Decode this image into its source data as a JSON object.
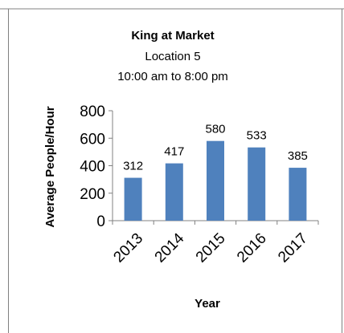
{
  "colors": {
    "bar": "#4f81bd",
    "axis": "#808080",
    "text": "#000000",
    "frame": "#808080"
  },
  "chart_data": {
    "type": "bar",
    "title": "King at Market",
    "subtitle_lines": [
      "Location 5",
      "10:00 am to 8:00 pm"
    ],
    "xlabel": "Year",
    "ylabel": "Average People/Hour",
    "categories": [
      "2013",
      "2014",
      "2015",
      "2016",
      "2017"
    ],
    "values": [
      312,
      417,
      580,
      533,
      385
    ],
    "data_labels": [
      "312",
      "417",
      "580",
      "533",
      "385"
    ],
    "ylim": [
      0,
      800
    ],
    "yticks": [
      0,
      200,
      400,
      600,
      800
    ],
    "ytick_labels": [
      "0",
      "200",
      "400",
      "600",
      "800"
    ],
    "grid": false,
    "legend": "none"
  }
}
